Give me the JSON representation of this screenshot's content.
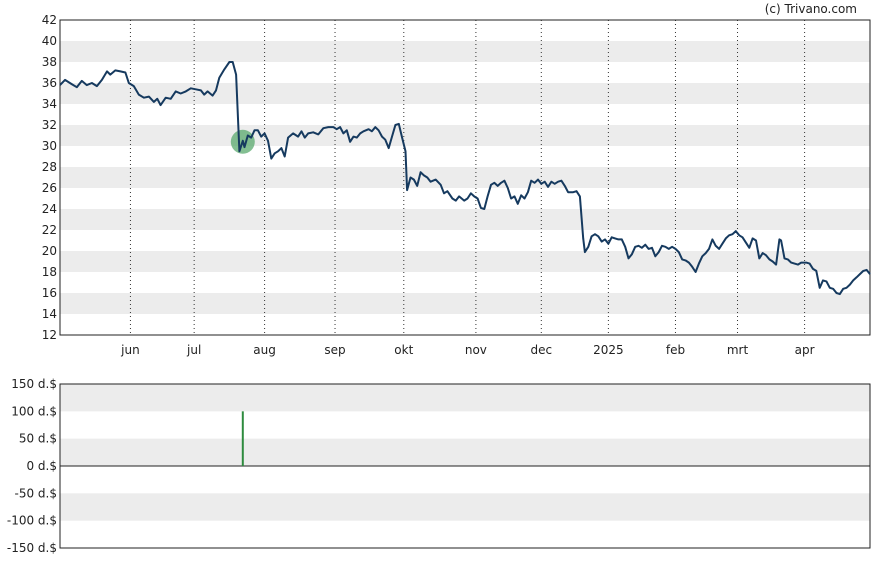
{
  "credit": "(c) Trivano.com",
  "chart_data": [
    {
      "type": "line",
      "series": [
        {
          "values": [
            [
              0,
              35.8
            ],
            [
              3,
              36.3
            ],
            [
              7,
              35.9
            ],
            [
              10,
              35.6
            ],
            [
              13,
              36.2
            ],
            [
              16,
              35.8
            ],
            [
              19,
              36.0
            ],
            [
              22,
              35.7
            ],
            [
              25,
              36.3
            ],
            [
              28,
              37.1
            ],
            [
              30,
              36.8
            ],
            [
              33,
              37.2
            ],
            [
              36,
              37.1
            ],
            [
              39,
              37.0
            ],
            [
              41,
              36.0
            ],
            [
              44,
              35.7
            ],
            [
              47,
              34.9
            ],
            [
              50,
              34.6
            ],
            [
              53,
              34.7
            ],
            [
              56,
              34.2
            ],
            [
              58,
              34.5
            ],
            [
              60,
              33.9
            ],
            [
              63,
              34.6
            ],
            [
              66,
              34.5
            ],
            [
              69,
              35.2
            ],
            [
              72,
              35.0
            ],
            [
              75,
              35.2
            ],
            [
              78,
              35.5
            ],
            [
              81,
              35.4
            ],
            [
              84,
              35.3
            ],
            [
              86,
              34.9
            ],
            [
              88,
              35.2
            ],
            [
              91,
              34.8
            ],
            [
              93,
              35.3
            ],
            [
              95,
              36.5
            ],
            [
              98,
              37.3
            ],
            [
              101,
              38.0
            ],
            [
              103,
              38.0
            ],
            [
              105,
              36.8
            ],
            [
              107,
              29.5
            ],
            [
              109,
              30.5
            ],
            [
              110,
              29.9
            ],
            [
              112,
              31.0
            ],
            [
              114,
              30.8
            ],
            [
              116,
              31.5
            ],
            [
              118,
              31.5
            ],
            [
              120,
              30.9
            ],
            [
              122,
              31.2
            ],
            [
              124,
              30.5
            ],
            [
              126,
              28.8
            ],
            [
              128,
              29.3
            ],
            [
              130,
              29.5
            ],
            [
              132,
              29.8
            ],
            [
              134,
              29.0
            ],
            [
              136,
              30.8
            ],
            [
              139,
              31.2
            ],
            [
              142,
              30.9
            ],
            [
              144,
              31.4
            ],
            [
              146,
              30.8
            ],
            [
              148,
              31.2
            ],
            [
              151,
              31.3
            ],
            [
              154,
              31.1
            ],
            [
              157,
              31.7
            ],
            [
              160,
              31.8
            ],
            [
              163,
              31.8
            ],
            [
              165,
              31.6
            ],
            [
              167,
              31.8
            ],
            [
              169,
              31.2
            ],
            [
              171,
              31.5
            ],
            [
              173,
              30.4
            ],
            [
              175,
              30.9
            ],
            [
              177,
              30.8
            ],
            [
              179,
              31.2
            ],
            [
              181,
              31.4
            ],
            [
              184,
              31.6
            ],
            [
              186,
              31.4
            ],
            [
              188,
              31.8
            ],
            [
              190,
              31.5
            ],
            [
              192,
              30.9
            ],
            [
              194,
              30.6
            ],
            [
              196,
              29.8
            ],
            [
              198,
              30.9
            ],
            [
              200,
              32.0
            ],
            [
              202,
              32.1
            ],
            [
              204,
              30.8
            ],
            [
              206,
              29.5
            ],
            [
              207,
              25.8
            ],
            [
              209,
              27.0
            ],
            [
              211,
              26.8
            ],
            [
              213,
              26.2
            ],
            [
              215,
              27.5
            ],
            [
              217,
              27.2
            ],
            [
              219,
              27.0
            ],
            [
              221,
              26.6
            ],
            [
              224,
              26.8
            ],
            [
              227,
              26.3
            ],
            [
              229,
              25.5
            ],
            [
              231,
              25.7
            ],
            [
              234,
              25.0
            ],
            [
              236,
              24.8
            ],
            [
              238,
              25.2
            ],
            [
              241,
              24.8
            ],
            [
              243,
              25.0
            ],
            [
              245,
              25.5
            ],
            [
              247,
              25.2
            ],
            [
              249,
              25.0
            ],
            [
              251,
              24.1
            ],
            [
              253,
              24.0
            ],
            [
              255,
              25.2
            ],
            [
              257,
              26.3
            ],
            [
              259,
              26.5
            ],
            [
              261,
              26.2
            ],
            [
              263,
              26.5
            ],
            [
              265,
              26.7
            ],
            [
              267,
              26.0
            ],
            [
              269,
              25.0
            ],
            [
              271,
              25.2
            ],
            [
              273,
              24.5
            ],
            [
              275,
              25.3
            ],
            [
              277,
              25.0
            ],
            [
              279,
              25.6
            ],
            [
              281,
              26.7
            ],
            [
              283,
              26.5
            ],
            [
              285,
              26.8
            ],
            [
              287,
              26.4
            ],
            [
              289,
              26.6
            ],
            [
              291,
              26.1
            ],
            [
              293,
              26.6
            ],
            [
              295,
              26.4
            ],
            [
              297,
              26.6
            ],
            [
              299,
              26.7
            ],
            [
              301,
              26.2
            ],
            [
              303,
              25.6
            ],
            [
              306,
              25.6
            ],
            [
              308,
              25.7
            ],
            [
              310,
              25.2
            ],
            [
              312,
              21.2
            ],
            [
              313,
              19.9
            ],
            [
              315,
              20.4
            ],
            [
              317,
              21.4
            ],
            [
              319,
              21.6
            ],
            [
              321,
              21.4
            ],
            [
              323,
              20.9
            ],
            [
              325,
              21.1
            ],
            [
              327,
              20.7
            ],
            [
              329,
              21.3
            ],
            [
              331,
              21.2
            ],
            [
              333,
              21.1
            ],
            [
              335,
              21.1
            ],
            [
              337,
              20.4
            ],
            [
              339,
              19.3
            ],
            [
              341,
              19.7
            ],
            [
              343,
              20.4
            ],
            [
              345,
              20.5
            ],
            [
              347,
              20.3
            ],
            [
              349,
              20.6
            ],
            [
              351,
              20.2
            ],
            [
              353,
              20.3
            ],
            [
              355,
              19.5
            ],
            [
              357,
              19.9
            ],
            [
              359,
              20.5
            ],
            [
              361,
              20.4
            ],
            [
              363,
              20.2
            ],
            [
              365,
              20.4
            ],
            [
              367,
              20.2
            ],
            [
              369,
              19.9
            ],
            [
              371,
              19.2
            ],
            [
              373,
              19.1
            ],
            [
              375,
              18.9
            ],
            [
              377,
              18.5
            ],
            [
              379,
              18.0
            ],
            [
              381,
              18.8
            ],
            [
              383,
              19.5
            ],
            [
              385,
              19.8
            ],
            [
              387,
              20.2
            ],
            [
              389,
              21.1
            ],
            [
              391,
              20.5
            ],
            [
              393,
              20.2
            ],
            [
              395,
              20.7
            ],
            [
              397,
              21.2
            ],
            [
              399,
              21.5
            ],
            [
              401,
              21.6
            ],
            [
              403,
              21.9
            ],
            [
              405,
              21.5
            ],
            [
              407,
              21.3
            ],
            [
              409,
              20.8
            ],
            [
              411,
              20.3
            ],
            [
              413,
              21.2
            ],
            [
              415,
              21.0
            ],
            [
              417,
              19.3
            ],
            [
              419,
              19.8
            ],
            [
              421,
              19.6
            ],
            [
              423,
              19.2
            ],
            [
              425,
              19.0
            ],
            [
              427,
              18.7
            ],
            [
              429,
              21.1
            ],
            [
              430,
              21.0
            ],
            [
              432,
              19.3
            ],
            [
              434,
              19.2
            ],
            [
              436,
              18.9
            ],
            [
              438,
              18.8
            ],
            [
              440,
              18.7
            ],
            [
              442,
              18.9
            ],
            [
              445,
              18.9
            ],
            [
              447,
              18.8
            ],
            [
              449,
              18.3
            ],
            [
              451,
              18.1
            ],
            [
              453,
              16.5
            ],
            [
              455,
              17.2
            ],
            [
              457,
              17.1
            ],
            [
              459,
              16.5
            ],
            [
              461,
              16.4
            ],
            [
              463,
              16.0
            ],
            [
              465,
              15.9
            ],
            [
              467,
              16.4
            ],
            [
              469,
              16.5
            ],
            [
              471,
              16.8
            ],
            [
              473,
              17.2
            ],
            [
              475,
              17.5
            ],
            [
              477,
              17.8
            ],
            [
              479,
              18.1
            ],
            [
              481,
              18.2
            ],
            [
              483,
              17.8
            ]
          ]
        }
      ],
      "x_ticks": [
        {
          "label": "jun",
          "pos": 42
        },
        {
          "label": "jul",
          "pos": 80
        },
        {
          "label": "aug",
          "pos": 122
        },
        {
          "label": "sep",
          "pos": 164
        },
        {
          "label": "okt",
          "pos": 205
        },
        {
          "label": "nov",
          "pos": 248
        },
        {
          "label": "dec",
          "pos": 287
        },
        {
          "label": "2025",
          "pos": 327
        },
        {
          "label": "feb",
          "pos": 367
        },
        {
          "label": "mrt",
          "pos": 404
        },
        {
          "label": "apr",
          "pos": 444
        }
      ],
      "xlim": [
        0,
        483
      ],
      "y_ticks": [
        "12",
        "14",
        "16",
        "18",
        "20",
        "22",
        "24",
        "26",
        "28",
        "30",
        "32",
        "34",
        "36",
        "38",
        "40",
        "42"
      ],
      "ylim": [
        12,
        42
      ],
      "marker": {
        "x": 109,
        "y": 30.4,
        "color": "#5aaa6e"
      },
      "line_color": "#163a5f",
      "grid": true
    },
    {
      "type": "bar",
      "x_ticks": [
        {
          "label": "jun",
          "pos": 42
        },
        {
          "label": "jul",
          "pos": 80
        },
        {
          "label": "aug",
          "pos": 122
        },
        {
          "label": "sep",
          "pos": 164
        },
        {
          "label": "okt",
          "pos": 205
        },
        {
          "label": "nov",
          "pos": 248
        },
        {
          "label": "dec",
          "pos": 287
        },
        {
          "label": "2025",
          "pos": 327
        },
        {
          "label": "feb",
          "pos": 367
        },
        {
          "label": "mrt",
          "pos": 404
        },
        {
          "label": "apr",
          "pos": 444
        }
      ],
      "xlim": [
        0,
        483
      ],
      "y_ticks": [
        "150 d.$",
        "100 d.$",
        "50 d.$",
        "0 d.$",
        "-50 d.$",
        "-100 d.$",
        "-150 d.$"
      ],
      "ylim": [
        -150,
        150
      ],
      "bars": [
        {
          "x": 109,
          "value": 100
        }
      ],
      "bar_color": "#2e8b3e"
    }
  ]
}
